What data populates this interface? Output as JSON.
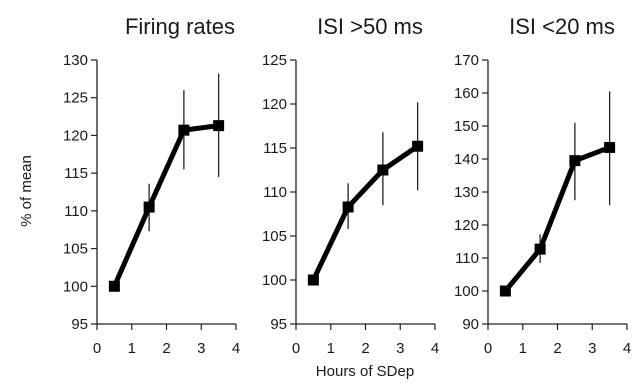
{
  "chart_data": [
    {
      "type": "line",
      "title": "Firing rates",
      "ylabel": "% of mean",
      "xlabel": "Hours of SDep",
      "xlim": [
        0,
        4
      ],
      "ylim": [
        95,
        130
      ],
      "xticks": [
        "0",
        "1",
        "2",
        "3",
        "4"
      ],
      "yticks": [
        "95",
        "100",
        "105",
        "110",
        "115",
        "120",
        "125",
        "130"
      ],
      "x": [
        0.5,
        1.5,
        2.5,
        3.5
      ],
      "y": [
        100,
        110.5,
        120.7,
        121.3
      ],
      "yerr_low": [
        100,
        107.3,
        115.5,
        114.5
      ],
      "yerr_high": [
        100,
        113.6,
        126,
        128.2
      ]
    },
    {
      "type": "line",
      "title": "ISI >50 ms",
      "xlim": [
        0,
        4
      ],
      "ylim": [
        95,
        125
      ],
      "xticks": [
        "0",
        "1",
        "2",
        "3",
        "4"
      ],
      "yticks": [
        "95",
        "100",
        "105",
        "110",
        "115",
        "120",
        "125"
      ],
      "x": [
        0.5,
        1.5,
        2.5,
        3.5
      ],
      "y": [
        100,
        108.3,
        112.5,
        115.2
      ],
      "yerr_low": [
        100,
        105.8,
        108.5,
        110.2
      ],
      "yerr_high": [
        100,
        111,
        116.8,
        120.2
      ]
    },
    {
      "type": "line",
      "title": "ISI <20 ms",
      "xlim": [
        0,
        4
      ],
      "ylim": [
        90,
        170
      ],
      "xticks": [
        "0",
        "1",
        "2",
        "3",
        "4"
      ],
      "yticks": [
        "90",
        "100",
        "110",
        "120",
        "130",
        "140",
        "150",
        "160",
        "170"
      ],
      "x": [
        0.5,
        1.5,
        2.5,
        3.5
      ],
      "y": [
        100,
        112.7,
        139.5,
        143.5
      ],
      "yerr_low": [
        100,
        108.5,
        127.5,
        126
      ],
      "yerr_high": [
        100,
        117.2,
        151,
        160.5
      ]
    }
  ]
}
